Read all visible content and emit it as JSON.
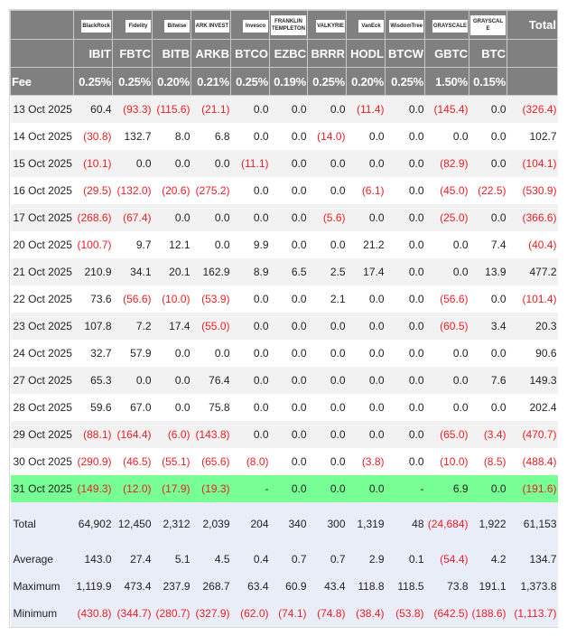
{
  "logos": [
    "BlackRock",
    "Fidelity",
    "Bitwise",
    "ARK INVEST",
    "Invesco",
    "FRANKLIN TEMPLETON",
    "VALKYRIE",
    "VanEck",
    "WisdomTree",
    "GRAYSCALE",
    "GRAYSCALE"
  ],
  "total_label": "Total",
  "tickers": [
    "IBIT",
    "FBTC",
    "BITB",
    "ARKB",
    "BTCO",
    "EZBC",
    "BRRR",
    "HODL",
    "BTCW",
    "GBTC",
    "BTC"
  ],
  "fee_label": "Fee",
  "fees": [
    "0.25%",
    "0.25%",
    "0.20%",
    "0.21%",
    "0.25%",
    "0.19%",
    "0.25%",
    "0.20%",
    "0.25%",
    "1.50%",
    "0.15%"
  ],
  "highlight_color": "#77ff95",
  "negative_color": "#ee1c25",
  "rows": [
    {
      "date": "13 Oct 2025",
      "v": [
        "60.4",
        "(93.3)",
        "(115.6)",
        "(21.1)",
        "0.0",
        "0.0",
        "0.0",
        "(11.4)",
        "0.0",
        "(145.4)",
        "0.0",
        "(326.4)"
      ]
    },
    {
      "date": "14 Oct 2025",
      "v": [
        "(30.8)",
        "132.7",
        "8.0",
        "6.8",
        "0.0",
        "0.0",
        "(14.0)",
        "0.0",
        "0.0",
        "0.0",
        "0.0",
        "102.7"
      ]
    },
    {
      "date": "15 Oct 2025",
      "v": [
        "(10.1)",
        "0.0",
        "0.0",
        "0.0",
        "(11.1)",
        "0.0",
        "0.0",
        "0.0",
        "0.0",
        "(82.9)",
        "0.0",
        "(104.1)"
      ]
    },
    {
      "date": "16 Oct 2025",
      "v": [
        "(29.5)",
        "(132.0)",
        "(20.6)",
        "(275.2)",
        "0.0",
        "0.0",
        "0.0",
        "(6.1)",
        "0.0",
        "(45.0)",
        "(22.5)",
        "(530.9)"
      ]
    },
    {
      "date": "17 Oct 2025",
      "v": [
        "(268.6)",
        "(67.4)",
        "0.0",
        "0.0",
        "0.0",
        "0.0",
        "(5.6)",
        "0.0",
        "0.0",
        "(25.0)",
        "0.0",
        "(366.6)"
      ]
    },
    {
      "date": "20 Oct 2025",
      "v": [
        "(100.7)",
        "9.7",
        "12.1",
        "0.0",
        "9.9",
        "0.0",
        "0.0",
        "21.2",
        "0.0",
        "0.0",
        "7.4",
        "(40.4)"
      ]
    },
    {
      "date": "21 Oct 2025",
      "v": [
        "210.9",
        "34.1",
        "20.1",
        "162.9",
        "8.9",
        "6.5",
        "2.5",
        "17.4",
        "0.0",
        "0.0",
        "13.9",
        "477.2"
      ]
    },
    {
      "date": "22 Oct 2025",
      "v": [
        "73.6",
        "(56.6)",
        "(10.0)",
        "(53.9)",
        "0.0",
        "0.0",
        "2.1",
        "0.0",
        "0.0",
        "(56.6)",
        "0.0",
        "(101.4)"
      ]
    },
    {
      "date": "23 Oct 2025",
      "v": [
        "107.8",
        "7.2",
        "17.4",
        "(55.0)",
        "0.0",
        "0.0",
        "0.0",
        "0.0",
        "0.0",
        "(60.5)",
        "3.4",
        "20.3"
      ]
    },
    {
      "date": "24 Oct 2025",
      "v": [
        "32.7",
        "57.9",
        "0.0",
        "0.0",
        "0.0",
        "0.0",
        "0.0",
        "0.0",
        "0.0",
        "0.0",
        "0.0",
        "90.6"
      ]
    },
    {
      "date": "27 Oct 2025",
      "v": [
        "65.3",
        "0.0",
        "0.0",
        "76.4",
        "0.0",
        "0.0",
        "0.0",
        "0.0",
        "0.0",
        "0.0",
        "7.6",
        "149.3"
      ]
    },
    {
      "date": "28 Oct 2025",
      "v": [
        "59.6",
        "67.0",
        "0.0",
        "75.8",
        "0.0",
        "0.0",
        "0.0",
        "0.0",
        "0.0",
        "0.0",
        "0.0",
        "202.4"
      ]
    },
    {
      "date": "29 Oct 2025",
      "v": [
        "(88.1)",
        "(164.4)",
        "(6.0)",
        "(143.8)",
        "0.0",
        "0.0",
        "0.0",
        "0.0",
        "0.0",
        "(65.0)",
        "(3.4)",
        "(470.7)"
      ]
    },
    {
      "date": "30 Oct 2025",
      "v": [
        "(290.9)",
        "(46.5)",
        "(55.1)",
        "(65.6)",
        "(8.0)",
        "0.0",
        "0.0",
        "(3.8)",
        "0.0",
        "(10.0)",
        "(8.5)",
        "(488.4)"
      ]
    },
    {
      "date": "31 Oct 2025",
      "highlight": true,
      "v": [
        "(149.3)",
        "(12.0)",
        "(17.9)",
        "(19.3)",
        "-",
        "0.0",
        "0.0",
        "0.0",
        "-",
        "6.9",
        "0.0",
        "(191.6)"
      ]
    }
  ],
  "summary": [
    {
      "label": "Total",
      "v": [
        "64,902",
        "12,450",
        "2,312",
        "2,039",
        "204",
        "340",
        "300",
        "1,319",
        "48",
        "(24,684)",
        "1,922",
        "61,153"
      ]
    },
    {
      "label": "Average",
      "v": [
        "143.0",
        "27.4",
        "5.1",
        "4.5",
        "0.4",
        "0.7",
        "0.7",
        "2.9",
        "0.1",
        "(54.4)",
        "4.2",
        "134.7"
      ]
    },
    {
      "label": "Maximum",
      "v": [
        "1,119.9",
        "473.4",
        "237.9",
        "268.7",
        "63.4",
        "60.9",
        "43.4",
        "118.8",
        "118.5",
        "73.8",
        "191.1",
        "1,373.8"
      ]
    },
    {
      "label": "Minimum",
      "v": [
        "(430.8)",
        "(344.7)",
        "(280.7)",
        "(327.9)",
        "(62.0)",
        "(74.1)",
        "(74.8)",
        "(38.4)",
        "(53.8)",
        "(642.5)",
        "(188.6)",
        "(1,113.7)"
      ]
    }
  ]
}
